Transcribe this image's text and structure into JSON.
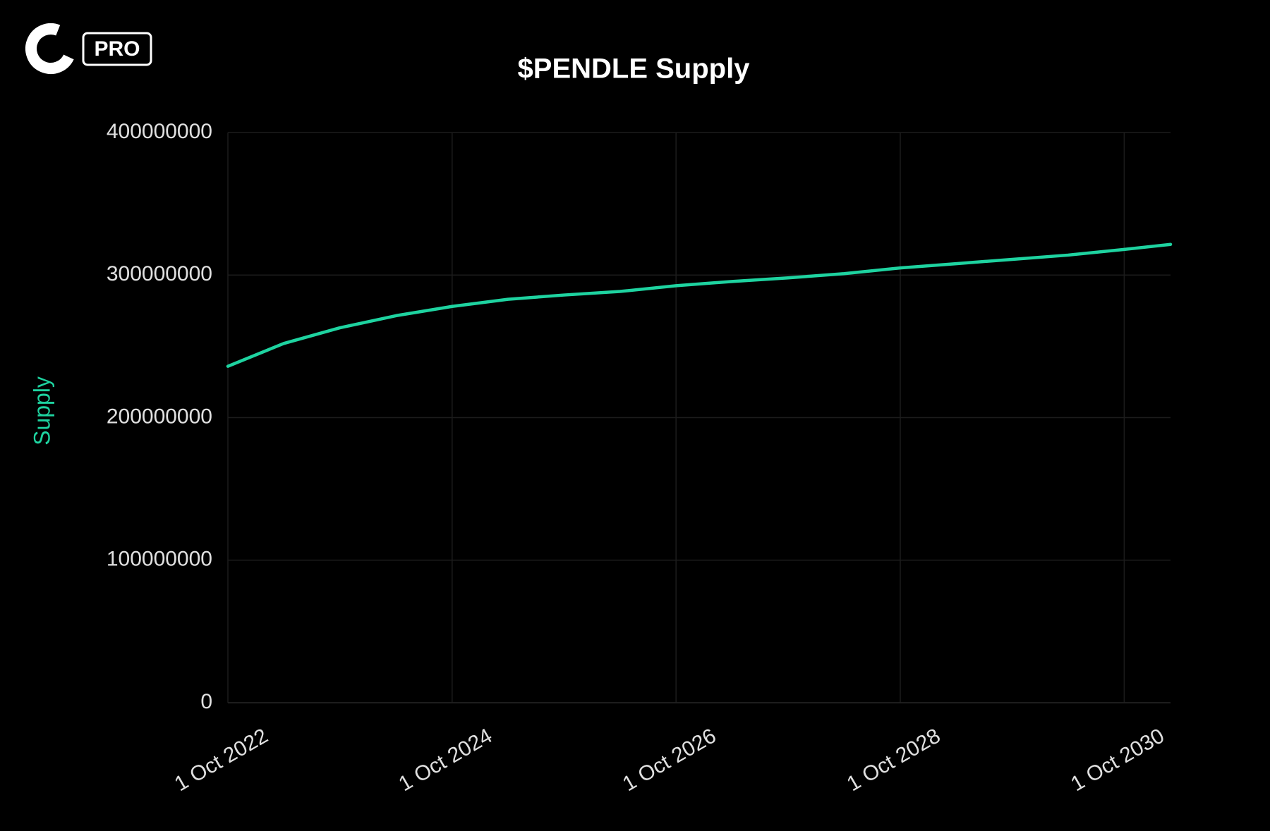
{
  "brand": {
    "badge": "PRO"
  },
  "chart_data": {
    "type": "line",
    "title": "$PENDLE Supply",
    "y_label": "Supply",
    "x": [
      "2022-10-01",
      "2023-04-01",
      "2023-10-01",
      "2024-04-01",
      "2024-10-01",
      "2025-04-01",
      "2025-10-01",
      "2026-04-01",
      "2026-10-01",
      "2027-04-01",
      "2027-10-01",
      "2028-04-01",
      "2028-10-01",
      "2029-04-01",
      "2029-10-01",
      "2030-04-01",
      "2030-10-01",
      "2031-03-01"
    ],
    "series": [
      {
        "name": "Supply",
        "color": "#1ed3a0",
        "values": [
          236000000,
          252000000,
          263000000,
          271500000,
          278000000,
          283000000,
          286000000,
          288500000,
          292500000,
          295500000,
          298000000,
          301000000,
          305000000,
          308000000,
          311000000,
          314000000,
          318000000,
          321500000
        ]
      }
    ],
    "xlim": [
      "2022-10-01",
      "2031-03-01"
    ],
    "xticks": [
      {
        "value": "2022-10-01",
        "label": "1 Oct 2022"
      },
      {
        "value": "2024-10-01",
        "label": "1 Oct 2024"
      },
      {
        "value": "2026-10-01",
        "label": "1 Oct 2026"
      },
      {
        "value": "2028-10-01",
        "label": "1 Oct 2028"
      },
      {
        "value": "2030-10-01",
        "label": "1 Oct 2030"
      }
    ],
    "ylim": [
      0,
      400000000
    ],
    "yticks": [
      0,
      100000000,
      200000000,
      300000000,
      400000000
    ],
    "grid": true
  }
}
